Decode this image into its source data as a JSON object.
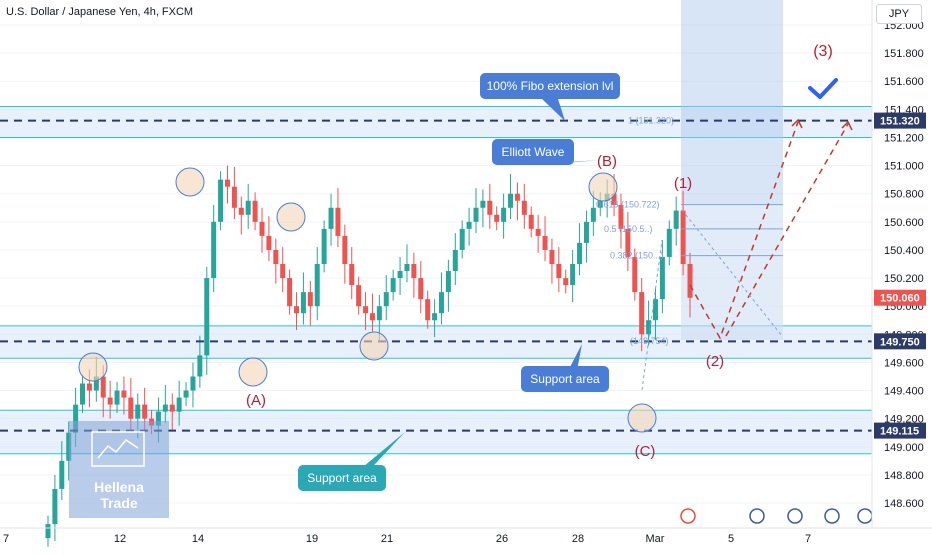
{
  "header": {
    "title": "U.S. Dollar / Japanese Yen, 4h, FXCM",
    "currency": "JPY"
  },
  "colors": {
    "up": "#26a69a",
    "down": "#ef5350",
    "zone_fill": "#d6e4f7",
    "zone_line": "#26c6da",
    "dashed": "#2b3a67",
    "wave_red": "#b22234",
    "callout_blue": "#4a7ed6",
    "callout_teal": "#2ba8b6",
    "check": "#2962ff",
    "projection": "#c0392b"
  },
  "annotations": {
    "fibo_callout": "100% Fibo extension lvl",
    "elliott_callout": "Elliott Wave",
    "support_callout_1": "Support area",
    "support_callout_2": "Support area",
    "wave_A": "(A)",
    "wave_B": "(B)",
    "wave_C": "(C)",
    "wave_1": "(1)",
    "wave_2": "(2)",
    "wave_3": "(3)",
    "watermark_line1": "Hellena",
    "watermark_line2": "Trade",
    "fib_labels": [
      "1 (151.320)",
      "0.618 (150.722)",
      "0.5 (150.5..)",
      "0.382 (150...)",
      "(149.754)"
    ]
  },
  "chart_data": {
    "type": "candlestick",
    "title": "U.S. Dollar / Japanese Yen, 4h, FXCM",
    "ylim": [
      148.45,
      152.2
    ],
    "y_ticks": [
      148.6,
      148.8,
      149.0,
      149.2,
      149.4,
      149.6,
      149.8,
      150.0,
      150.2,
      150.4,
      150.6,
      150.8,
      151.0,
      151.2,
      151.4,
      151.6,
      151.8,
      152.0
    ],
    "y_tick_labels": [
      "148.600",
      "148.800",
      "149.000",
      "149.200",
      "149.400",
      "149.600",
      "149.800",
      "150.000",
      "150.200",
      "150.400",
      "150.600",
      "150.800",
      "151.000",
      "151.200",
      "151.400",
      "151.600",
      "151.800",
      "152.000"
    ],
    "x_labels": [
      "7",
      "12",
      "14",
      "19",
      "21",
      "26",
      "28",
      "Mar",
      "5",
      "7"
    ],
    "price_labels": [
      {
        "value": 151.32,
        "text": "151.320",
        "color": "#2b3a67"
      },
      {
        "value": 150.06,
        "text": "150.060",
        "color": "#ef5350"
      },
      {
        "value": 149.75,
        "text": "149.750",
        "color": "#2b3a67"
      },
      {
        "value": 149.115,
        "text": "149.115",
        "color": "#2b3a67"
      }
    ],
    "horizontal_levels": [
      151.32,
      149.75,
      149.115
    ],
    "zones": [
      [
        151.2,
        151.42
      ],
      [
        149.63,
        149.86
      ],
      [
        148.95,
        149.26
      ]
    ],
    "series_close": [
      148.45,
      148.7,
      148.9,
      149.1,
      149.3,
      149.45,
      149.4,
      149.5,
      149.35,
      149.3,
      149.4,
      149.35,
      149.2,
      149.3,
      149.2,
      149.15,
      149.25,
      149.3,
      149.25,
      149.35,
      149.4,
      149.5,
      149.65,
      150.2,
      150.6,
      150.9,
      150.85,
      150.7,
      150.65,
      150.75,
      150.6,
      150.5,
      150.4,
      150.3,
      150.2,
      150.0,
      149.95,
      150.1,
      150.0,
      150.3,
      150.55,
      150.7,
      150.5,
      150.3,
      150.15,
      150.0,
      149.95,
      149.9,
      150.0,
      150.1,
      150.2,
      150.25,
      150.3,
      150.2,
      150.05,
      149.9,
      149.95,
      150.1,
      150.25,
      150.4,
      150.55,
      150.6,
      150.7,
      150.75,
      150.65,
      150.6,
      150.7,
      150.8,
      150.75,
      150.65,
      150.55,
      150.5,
      150.4,
      150.3,
      150.2,
      150.15,
      150.3,
      150.45,
      150.6,
      150.7,
      150.75,
      150.8,
      150.72,
      150.55,
      150.35,
      150.1,
      149.8,
      149.9,
      150.05,
      150.35,
      150.55,
      150.68,
      150.3,
      150.06
    ]
  }
}
